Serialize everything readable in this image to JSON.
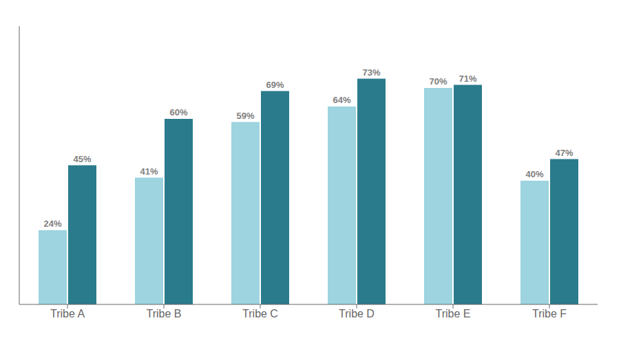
{
  "chart_data": {
    "type": "bar",
    "categories": [
      "Tribe A",
      "Tribe B",
      "Tribe C",
      "Tribe D",
      "Tribe E",
      "Tribe F"
    ],
    "series": [
      {
        "color": "#9DD4E0",
        "values": [
          24,
          41,
          59,
          64,
          70,
          40
        ],
        "value_labels": [
          "24%",
          "41%",
          "59%",
          "64%",
          "70%",
          "40%"
        ]
      },
      {
        "color": "#2A7B8C",
        "values": [
          45,
          60,
          69,
          73,
          71,
          47
        ],
        "value_labels": [
          "45%",
          "60%",
          "69%",
          "73%",
          "71%",
          "47%"
        ]
      }
    ],
    "ylim": [
      0,
      90
    ],
    "tick_labels": "x",
    "data_labels": true,
    "grid": false
  }
}
